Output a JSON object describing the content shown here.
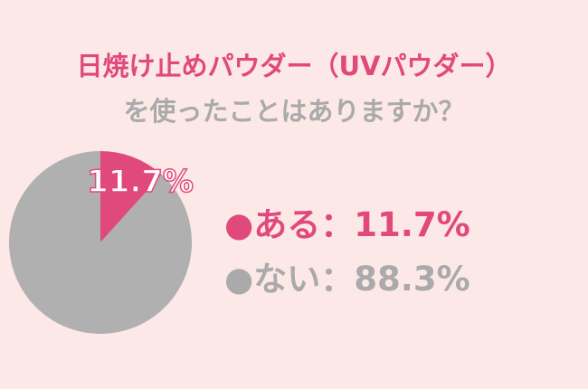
{
  "title_line1": "日焼け止めパウダー（UVパウダー）",
  "title_line2": "を使ったことはありますか？",
  "chart_data": {
    "type": "pie",
    "categories": [
      "ある",
      "ない"
    ],
    "values": [
      11.7,
      88.3
    ],
    "colors": [
      "#e0497c",
      "#b0b0b0"
    ],
    "data_labels": [
      "11.7%"
    ],
    "legend": [
      {
        "marker": "●",
        "text": "ある：11.7%"
      },
      {
        "marker": "●",
        "text": "ない：88.3%"
      }
    ],
    "legend_position": "right"
  }
}
